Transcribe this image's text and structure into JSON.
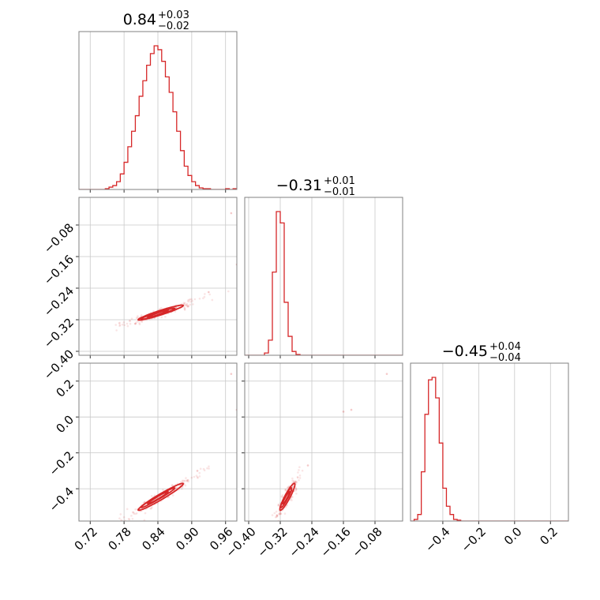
{
  "chart_data": {
    "type": "corner",
    "color": "#d62728",
    "grid": true,
    "parameters": [
      {
        "range": [
          0.7,
          0.98
        ],
        "ticks": [
          0.72,
          0.78,
          0.84,
          0.9,
          0.96
        ],
        "tick_labels": [
          "0.72",
          "0.78",
          "0.84",
          "0.90",
          "0.96"
        ],
        "title": {
          "value": "0.84",
          "upper": "+0.03",
          "lower": "−0.02"
        },
        "hist_bins": [
          0.7,
          0.7067,
          0.7133,
          0.72,
          0.7267,
          0.7333,
          0.74,
          0.7467,
          0.7533,
          0.76,
          0.7667,
          0.7733,
          0.78,
          0.7867,
          0.7933,
          0.8,
          0.8067,
          0.8133,
          0.82,
          0.8267,
          0.8333,
          0.84,
          0.8467,
          0.8533,
          0.86,
          0.8667,
          0.8733,
          0.88,
          0.8867,
          0.8933,
          0.9,
          0.9067,
          0.9133,
          0.92,
          0.9267,
          0.9333,
          0.94,
          0.9467,
          0.9533,
          0.96,
          0.9667,
          0.9733,
          0.98
        ],
        "hist_counts": [
          0,
          0,
          0,
          0,
          0,
          0,
          0,
          1,
          3,
          5,
          10,
          20,
          35,
          55,
          75,
          95,
          120,
          140,
          160,
          175,
          185,
          180,
          165,
          145,
          125,
          100,
          75,
          50,
          30,
          18,
          10,
          5,
          2,
          1,
          1,
          0,
          0,
          0,
          0,
          1,
          0,
          1
        ]
      },
      {
        "range": [
          -0.41,
          -0.01
        ],
        "ticks": [
          -0.4,
          -0.32,
          -0.24,
          -0.16,
          -0.08
        ],
        "tick_labels": [
          "−0.40",
          "−0.32",
          "−0.24",
          "−0.16",
          "−0.08"
        ],
        "title": {
          "value": "−0.31",
          "upper": "+0.01",
          "lower": "−0.01"
        },
        "hist_bins": [
          -0.41,
          -0.4,
          -0.39,
          -0.38,
          -0.37,
          -0.36,
          -0.35,
          -0.34,
          -0.33,
          -0.32,
          -0.31,
          -0.3,
          -0.29,
          -0.28,
          -0.27,
          -0.26,
          -0.25,
          -0.24,
          -0.23,
          -0.22,
          -0.21,
          -0.2,
          -0.19,
          -0.18,
          -0.17,
          -0.16,
          -0.15,
          -0.14,
          -0.13,
          -0.12,
          -0.11,
          -0.1,
          -0.09,
          -0.08,
          -0.07,
          -0.06,
          -0.05,
          -0.04,
          -0.03,
          -0.02,
          -0.01
        ],
        "hist_counts": [
          0,
          0,
          0,
          0,
          0,
          3,
          20,
          110,
          190,
          175,
          70,
          25,
          5,
          1,
          0,
          0,
          0,
          0,
          0,
          0,
          0,
          0,
          0,
          0,
          0,
          0,
          0,
          0,
          0,
          0,
          0,
          0,
          0,
          0,
          0,
          0,
          0,
          0,
          0,
          0
        ]
      },
      {
        "range": [
          -0.58,
          0.3
        ],
        "ticks": [
          -0.4,
          -0.2,
          0.0,
          0.2
        ],
        "tick_labels": [
          "−0.4",
          "−0.2",
          "0.0",
          "0.2"
        ],
        "title": {
          "value": "−0.45",
          "upper": "+0.04",
          "lower": "−0.04"
        },
        "hist_bins": [
          -0.58,
          -0.56,
          -0.54,
          -0.52,
          -0.5,
          -0.48,
          -0.46,
          -0.44,
          -0.42,
          -0.4,
          -0.38,
          -0.36,
          -0.34,
          -0.32,
          -0.3,
          -0.28,
          -0.26,
          -0.24,
          -0.22,
          -0.2,
          -0.18,
          -0.16,
          -0.14,
          -0.12,
          -0.1,
          -0.08,
          -0.06,
          -0.04,
          -0.02,
          0.0,
          0.02,
          0.04,
          0.06,
          0.08,
          0.1,
          0.12,
          0.14,
          0.16,
          0.18,
          0.2,
          0.22,
          0.24,
          0.26,
          0.28,
          0.3
        ],
        "hist_counts": [
          0,
          2,
          8,
          60,
          130,
          172,
          175,
          150,
          95,
          40,
          18,
          8,
          2,
          1,
          0,
          0,
          0,
          0,
          0,
          0,
          0,
          0,
          0,
          0,
          0,
          0,
          0,
          0,
          0,
          0,
          0,
          0,
          0,
          0,
          0,
          0,
          0,
          0,
          0,
          0,
          0,
          0,
          0,
          0
        ]
      }
    ],
    "pairs": [
      {
        "x_param": 0,
        "y_param": 1,
        "contours": [
          {
            "center": [
              0.84,
              -0.305
            ],
            "sx": 0.018,
            "sy": 0.009,
            "rho": 0.97
          },
          {
            "center": [
              0.84,
              -0.305
            ],
            "sx": 0.03,
            "sy": 0.014,
            "rho": 0.96
          },
          {
            "center": [
              0.845,
              -0.302
            ],
            "sx": 0.04,
            "sy": 0.019,
            "rho": 0.95
          }
        ],
        "outliers": [
          [
            0.97,
            -0.05
          ],
          [
            0.98,
            -0.18
          ],
          [
            0.93,
            -0.25
          ],
          [
            0.8,
            -0.33
          ]
        ]
      },
      {
        "x_param": 0,
        "y_param": 2,
        "contours": [
          {
            "center": [
              0.84,
              -0.45
            ],
            "sx": 0.018,
            "sy": 0.034,
            "rho": 0.98
          },
          {
            "center": [
              0.84,
              -0.45
            ],
            "sx": 0.03,
            "sy": 0.055,
            "rho": 0.98
          },
          {
            "center": [
              0.845,
              -0.445
            ],
            "sx": 0.04,
            "sy": 0.075,
            "rho": 0.97
          }
        ],
        "outliers": [
          [
            0.97,
            0.24
          ],
          [
            0.98,
            0.04
          ],
          [
            0.91,
            -0.3
          ]
        ]
      },
      {
        "x_param": 1,
        "y_param": 2,
        "contours": [
          {
            "center": [
              -0.305,
              -0.45
            ],
            "sx": 0.009,
            "sy": 0.034,
            "rho": 0.95
          },
          {
            "center": [
              -0.305,
              -0.45
            ],
            "sx": 0.014,
            "sy": 0.055,
            "rho": 0.94
          },
          {
            "center": [
              -0.302,
              -0.445
            ],
            "sx": 0.019,
            "sy": 0.075,
            "rho": 0.92
          }
        ],
        "outliers": [
          [
            -0.05,
            0.24
          ],
          [
            -0.14,
            0.04
          ],
          [
            -0.16,
            0.03
          ],
          [
            -0.25,
            -0.27
          ]
        ]
      }
    ]
  }
}
